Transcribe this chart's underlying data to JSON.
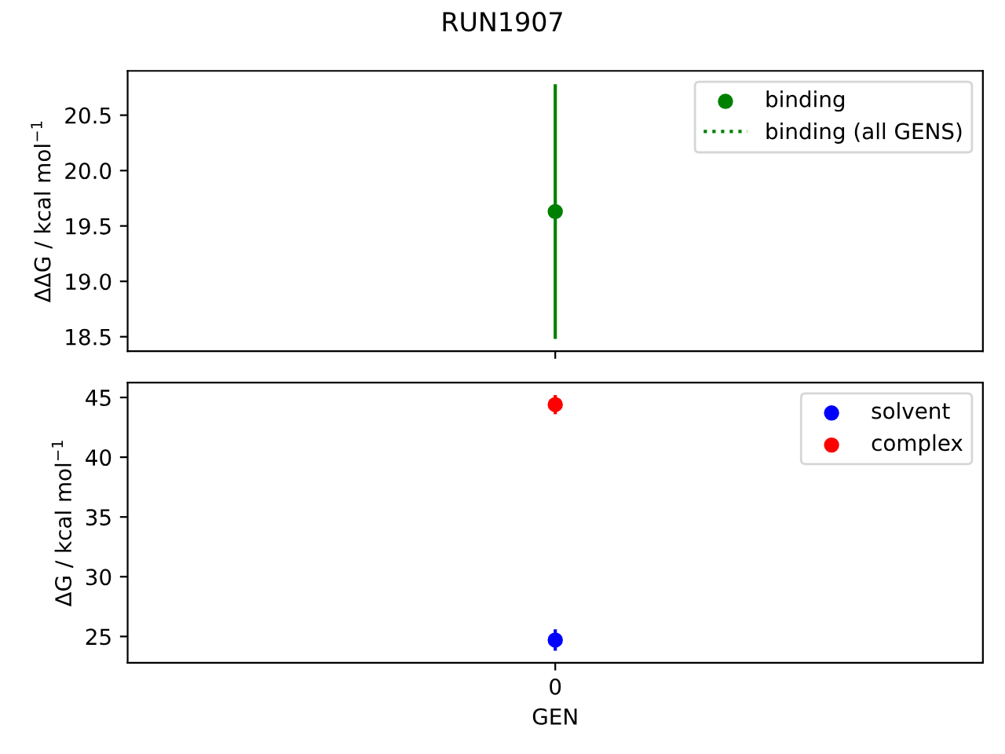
{
  "chart_data": [
    {
      "type": "scatter",
      "title": "RUN1907",
      "ylabel": "ΔΔG / kcal mol$^{−1}$",
      "categories": [
        null
      ],
      "series": [
        {
          "name": "binding",
          "color": "#008000",
          "values": [
            19.63
          ],
          "errors": [
            1.15
          ]
        },
        {
          "name": "binding (all GENS)",
          "type": "line",
          "line_style": "dotted",
          "color": "#008000",
          "values": [
            null
          ]
        }
      ],
      "marker": "circle",
      "ylim": [
        18.37,
        20.9
      ],
      "yticks": [
        18.5,
        {
          "value": 19,
          "label": "19.0"
        },
        19.5,
        {
          "value": 20,
          "label": "20.0"
        },
        20.5
      ],
      "legend": "top right"
    },
    {
      "type": "scatter",
      "xlabel": "GEN",
      "ylabel": "ΔG / kcal mol$^{−1}$",
      "categories": [
        "0"
      ],
      "series": [
        {
          "name": "solvent",
          "color": "#0000ff",
          "values": [
            24.7
          ],
          "errors": [
            0.9
          ]
        },
        {
          "name": "complex",
          "color": "#ff0000",
          "values": [
            44.4
          ],
          "errors": [
            0.8
          ]
        }
      ],
      "marker": "circle",
      "ylim": [
        22.8,
        46.25
      ],
      "yticks": [
        25,
        30,
        35,
        40,
        45
      ],
      "legend": "top right"
    }
  ]
}
